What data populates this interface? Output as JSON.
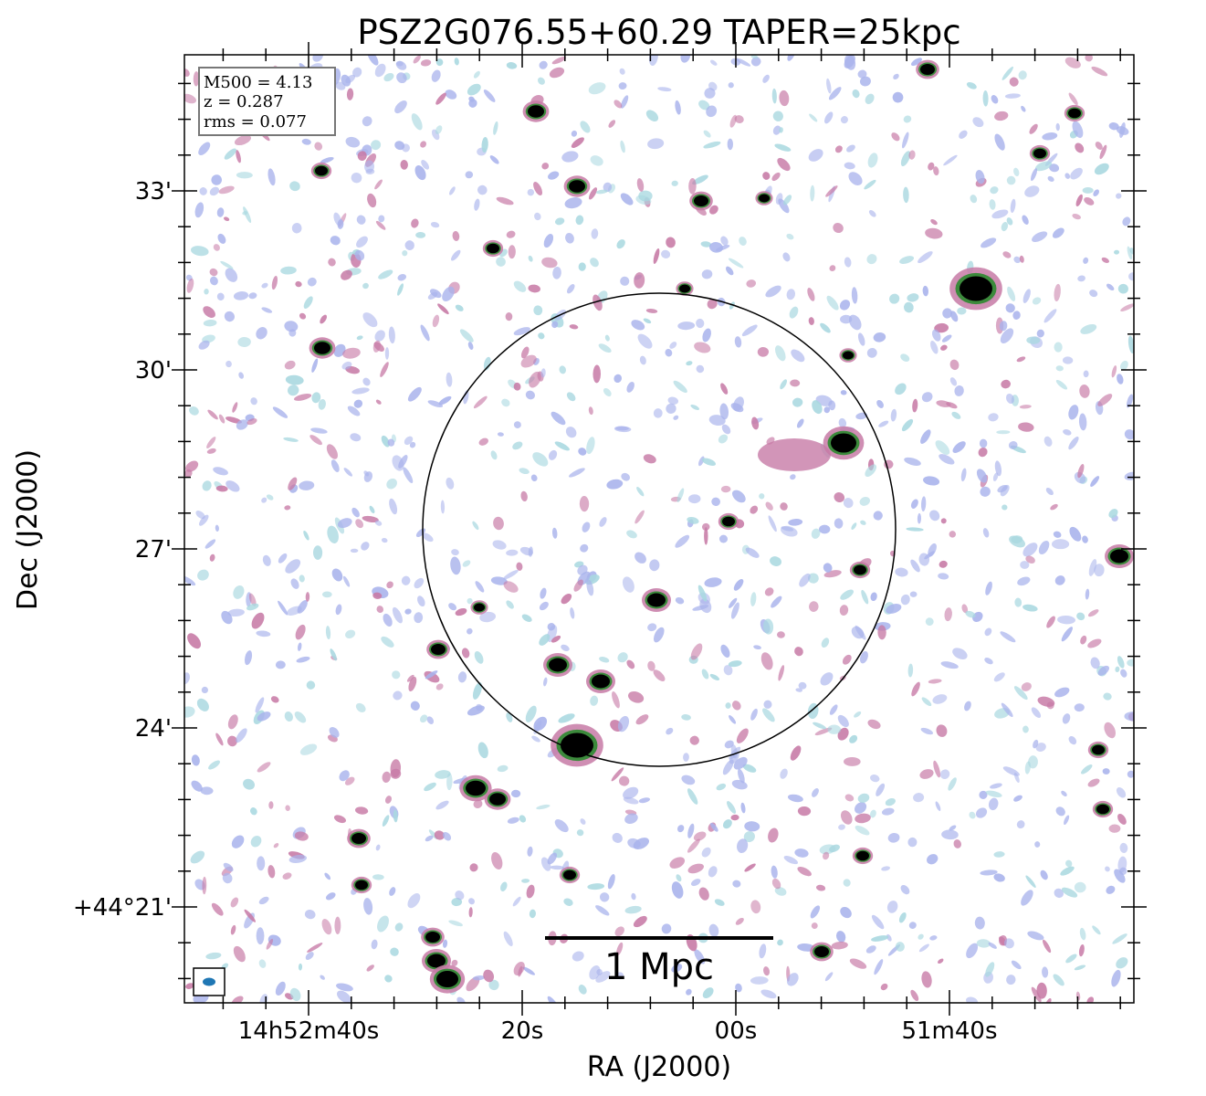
{
  "chart_data": {
    "type": "heatmap",
    "title": "PSZ2G076.55+60.29 TAPER=25kpc",
    "xlabel": "RA (J2000)",
    "ylabel": "Dec (J2000)",
    "x_ticks": [
      "14h52m40s",
      "20s",
      "00s",
      "51m40s"
    ],
    "y_ticks": [
      "33'",
      "30'",
      "27'",
      "24'",
      "+44°21'"
    ],
    "info_box": [
      "M500 = 4.13",
      "z = 0.287",
      "rms = 0.077"
    ],
    "scale_bar_label": "1 Mpc",
    "annotations": [
      "circle marking cluster region",
      "beam ellipse bottom-left"
    ],
    "colors": {
      "noise_low": "#a9d8e0",
      "noise_mid": "#a9b3ec",
      "mid": "#c77aa6",
      "high": "#3c8a3c",
      "peak": "#000000",
      "beam": "#1f77b4"
    }
  }
}
